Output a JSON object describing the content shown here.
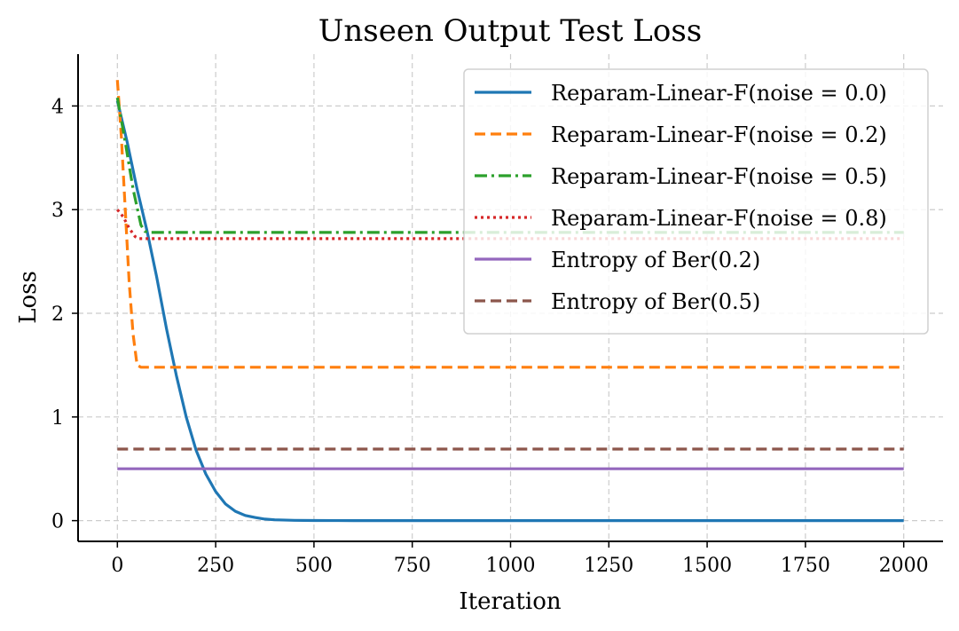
{
  "chart_data": {
    "type": "line",
    "title": "Unseen Output Test Loss",
    "xlabel": "Iteration",
    "ylabel": "Loss",
    "xlim": [
      -100,
      2100
    ],
    "ylim": [
      -0.2,
      4.5
    ],
    "xticks": [
      0,
      250,
      500,
      750,
      1000,
      1250,
      1500,
      1750,
      2000
    ],
    "yticks": [
      0,
      1,
      2,
      3,
      4
    ],
    "grid": true,
    "legend_position": "upper right",
    "series": [
      {
        "name": "Reparam-Linear-F(noise = 0.0)",
        "color": "#1f77b4",
        "style": "solid",
        "x": [
          0,
          25,
          50,
          75,
          100,
          125,
          150,
          175,
          200,
          225,
          250,
          275,
          300,
          325,
          350,
          375,
          400,
          450,
          500,
          600,
          700,
          800,
          1000,
          1250,
          1500,
          1750,
          2000
        ],
        "y": [
          4.05,
          3.65,
          3.2,
          2.8,
          2.35,
          1.85,
          1.4,
          1.0,
          0.68,
          0.45,
          0.28,
          0.16,
          0.09,
          0.05,
          0.03,
          0.015,
          0.008,
          0.003,
          0.001,
          0.0,
          0.0,
          0.0,
          0.0,
          0.0,
          0.0,
          0.0,
          0.0
        ]
      },
      {
        "name": "Reparam-Linear-F(noise = 0.2)",
        "color": "#ff7f0e",
        "style": "dashed",
        "x": [
          0,
          10,
          20,
          30,
          40,
          50,
          60,
          100,
          500,
          1000,
          1500,
          2000
        ],
        "y": [
          4.25,
          3.7,
          3.0,
          2.3,
          1.8,
          1.5,
          1.48,
          1.48,
          1.48,
          1.48,
          1.48,
          1.48
        ]
      },
      {
        "name": "Reparam-Linear-F(noise = 0.5)",
        "color": "#2ca02c",
        "style": "dashdot",
        "x": [
          0,
          20,
          40,
          60,
          70,
          80,
          100,
          500,
          1000,
          1500,
          2000
        ],
        "y": [
          4.08,
          3.65,
          3.2,
          2.85,
          2.79,
          2.78,
          2.78,
          2.78,
          2.78,
          2.78,
          2.78
        ]
      },
      {
        "name": "Reparam-Linear-F(noise = 0.8)",
        "color": "#d62728",
        "style": "dotted",
        "x": [
          0,
          15,
          30,
          45,
          55,
          70,
          100,
          500,
          1000,
          1500,
          2000
        ],
        "y": [
          3.0,
          2.93,
          2.82,
          2.74,
          2.72,
          2.72,
          2.72,
          2.72,
          2.72,
          2.72,
          2.72
        ]
      },
      {
        "name": "Entropy of Ber(0.2)",
        "color": "#9467bd",
        "style": "solid",
        "x": [
          0,
          2000
        ],
        "y": [
          0.5,
          0.5
        ]
      },
      {
        "name": "Entropy of Ber(0.5)",
        "color": "#8c564b",
        "style": "dashed",
        "x": [
          0,
          2000
        ],
        "y": [
          0.69,
          0.69
        ]
      }
    ]
  }
}
